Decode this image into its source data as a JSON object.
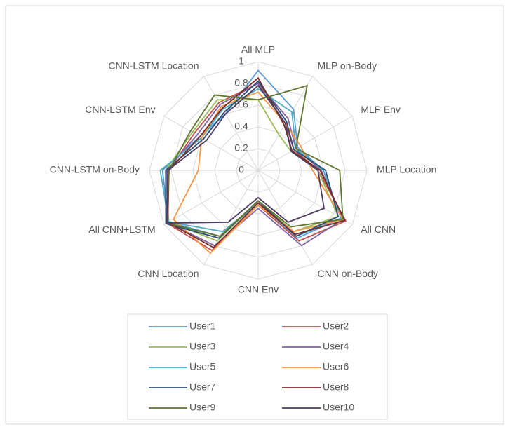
{
  "chart_data": {
    "type": "radar",
    "categories": [
      "All MLP",
      "MLP on-Body",
      "MLP Env",
      "MLP Location",
      "All CNN",
      "CNN on-Body",
      "CNN Env",
      "CNN Location",
      "All CNN+LSTM",
      "CNN-LSTM on-Body",
      "CNN-LSTM Env",
      "CNN-LSTM Location"
    ],
    "ylim": [
      0,
      1
    ],
    "yticks": [
      0,
      0.2,
      0.4,
      0.6,
      0.8,
      1
    ],
    "grid": true,
    "legend": "bottom",
    "series": [
      {
        "name": "User1",
        "color": "#5b9bd5",
        "values": [
          0.92,
          0.65,
          0.42,
          0.6,
          0.88,
          0.72,
          0.3,
          0.7,
          0.95,
          0.88,
          0.62,
          0.6
        ]
      },
      {
        "name": "User2",
        "color": "#c0504d",
        "values": [
          0.8,
          0.5,
          0.38,
          0.55,
          0.93,
          0.75,
          0.32,
          0.85,
          0.97,
          0.82,
          0.68,
          0.72
        ]
      },
      {
        "name": "User3",
        "color": "#9bbb59",
        "values": [
          0.65,
          0.38,
          0.35,
          0.55,
          0.85,
          0.65,
          0.28,
          0.75,
          0.95,
          0.85,
          0.7,
          0.75
        ]
      },
      {
        "name": "User4",
        "color": "#8064a2",
        "values": [
          0.8,
          0.55,
          0.4,
          0.58,
          0.9,
          0.8,
          0.35,
          0.8,
          0.96,
          0.84,
          0.65,
          0.7
        ]
      },
      {
        "name": "User5",
        "color": "#4bacc6",
        "values": [
          0.75,
          0.62,
          0.4,
          0.6,
          0.88,
          0.7,
          0.3,
          0.65,
          0.95,
          0.9,
          0.6,
          0.65
        ]
      },
      {
        "name": "User6",
        "color": "#f79646",
        "values": [
          0.72,
          0.5,
          0.45,
          0.5,
          0.9,
          0.65,
          0.32,
          0.88,
          0.9,
          0.55,
          0.6,
          0.68
        ]
      },
      {
        "name": "User7",
        "color": "#2c4d75",
        "values": [
          0.82,
          0.52,
          0.38,
          0.62,
          0.85,
          0.7,
          0.28,
          0.72,
          0.98,
          0.85,
          0.58,
          0.62
        ]
      },
      {
        "name": "User8",
        "color": "#772c2a",
        "values": [
          0.85,
          0.48,
          0.36,
          0.57,
          0.92,
          0.68,
          0.3,
          0.82,
          0.96,
          0.82,
          0.62,
          0.66
        ]
      },
      {
        "name": "User9",
        "color": "#5f7530",
        "values": [
          0.65,
          0.9,
          0.4,
          0.75,
          0.9,
          0.6,
          0.28,
          0.7,
          0.97,
          0.82,
          0.72,
          0.8
        ]
      },
      {
        "name": "User10",
        "color": "#4d3b62",
        "values": [
          0.78,
          0.5,
          0.35,
          0.55,
          0.7,
          0.55,
          0.25,
          0.55,
          0.97,
          0.83,
          0.55,
          0.6
        ]
      }
    ]
  }
}
